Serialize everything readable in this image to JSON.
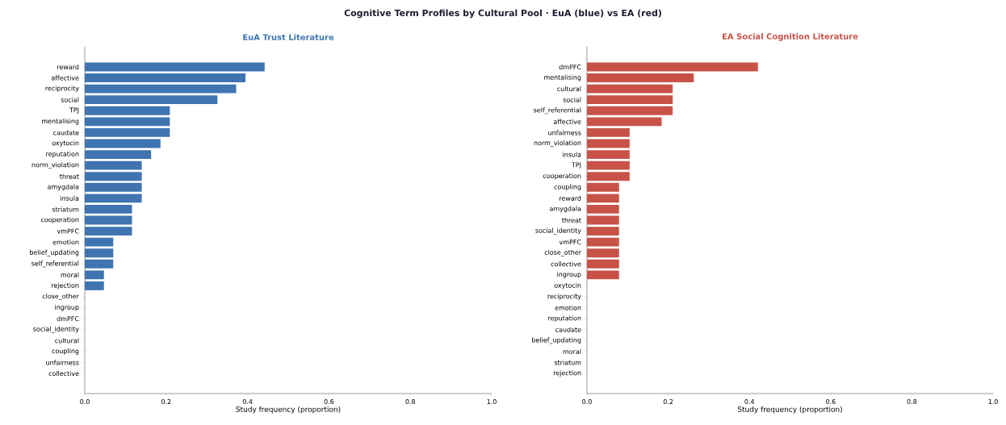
{
  "chart_data": [
    {
      "type": "bar",
      "orientation": "horizontal",
      "title": "EuA Trust Literature",
      "xlabel": "Study frequency (proportion)",
      "annotations": [
        "Cognitive Term Profiles by Cultural Pool  ·  EuA (blue) vs EA (red)"
      ],
      "categories": [
        "reward",
        "affective",
        "reciprocity",
        "social",
        "TPJ",
        "mentalising",
        "caudate",
        "oxytocin",
        "reputation",
        "norm_violation",
        "threat",
        "amygdala",
        "insula",
        "striatum",
        "cooperation",
        "vmPFC",
        "emotion",
        "belief_updating",
        "self_referential",
        "moral",
        "rejection",
        "close_other",
        "ingroup",
        "dmPFC",
        "social_identity",
        "cultural",
        "coupling",
        "unfairness",
        "collective"
      ],
      "values": [
        0.442,
        0.395,
        0.372,
        0.326,
        0.209,
        0.209,
        0.209,
        0.186,
        0.163,
        0.14,
        0.14,
        0.14,
        0.14,
        0.116,
        0.116,
        0.116,
        0.07,
        0.07,
        0.07,
        0.047,
        0.047,
        0,
        0,
        0,
        0,
        0,
        0,
        0,
        0
      ],
      "color": "#3f74b1",
      "xlim": [
        0,
        1
      ],
      "xticks": [
        {
          "value": 0,
          "label": "0.0"
        },
        {
          "value": 0.2,
          "label": "0.2"
        },
        {
          "value": 0.4,
          "label": "0.4"
        },
        {
          "value": 0.6,
          "label": "0.6"
        },
        {
          "value": 0.8,
          "label": "0.8"
        },
        {
          "value": 1,
          "label": "1.0"
        }
      ]
    },
    {
      "type": "bar",
      "orientation": "horizontal",
      "title": "EA Social Cognition Literature",
      "xlabel": "Study frequency (proportion)",
      "categories": [
        "dmPFC",
        "mentalising",
        "cultural",
        "social",
        "self_referential",
        "affective",
        "unfairness",
        "norm_violation",
        "insula",
        "TPJ",
        "cooperation",
        "coupling",
        "reward",
        "amygdala",
        "threat",
        "social_identity",
        "vmPFC",
        "close_other",
        "collective",
        "ingroup",
        "oxytocin",
        "reciprocity",
        "emotion",
        "reputation",
        "caudate",
        "belief_updating",
        "moral",
        "striatum",
        "rejection"
      ],
      "values": [
        0.421,
        0.263,
        0.211,
        0.211,
        0.211,
        0.184,
        0.105,
        0.105,
        0.105,
        0.105,
        0.105,
        0.079,
        0.079,
        0.079,
        0.079,
        0.079,
        0.079,
        0.079,
        0.079,
        0.079,
        0,
        0,
        0,
        0,
        0,
        0,
        0,
        0,
        0
      ],
      "color": "#c85248",
      "xlim": [
        0,
        1
      ],
      "xticks": [
        {
          "value": 0,
          "label": "0.0"
        },
        {
          "value": 0.2,
          "label": "0.2"
        },
        {
          "value": 0.4,
          "label": "0.4"
        },
        {
          "value": 0.6,
          "label": "0.6"
        },
        {
          "value": 0.8,
          "label": "0.8"
        },
        {
          "value": 1,
          "label": "1.0"
        }
      ]
    }
  ]
}
